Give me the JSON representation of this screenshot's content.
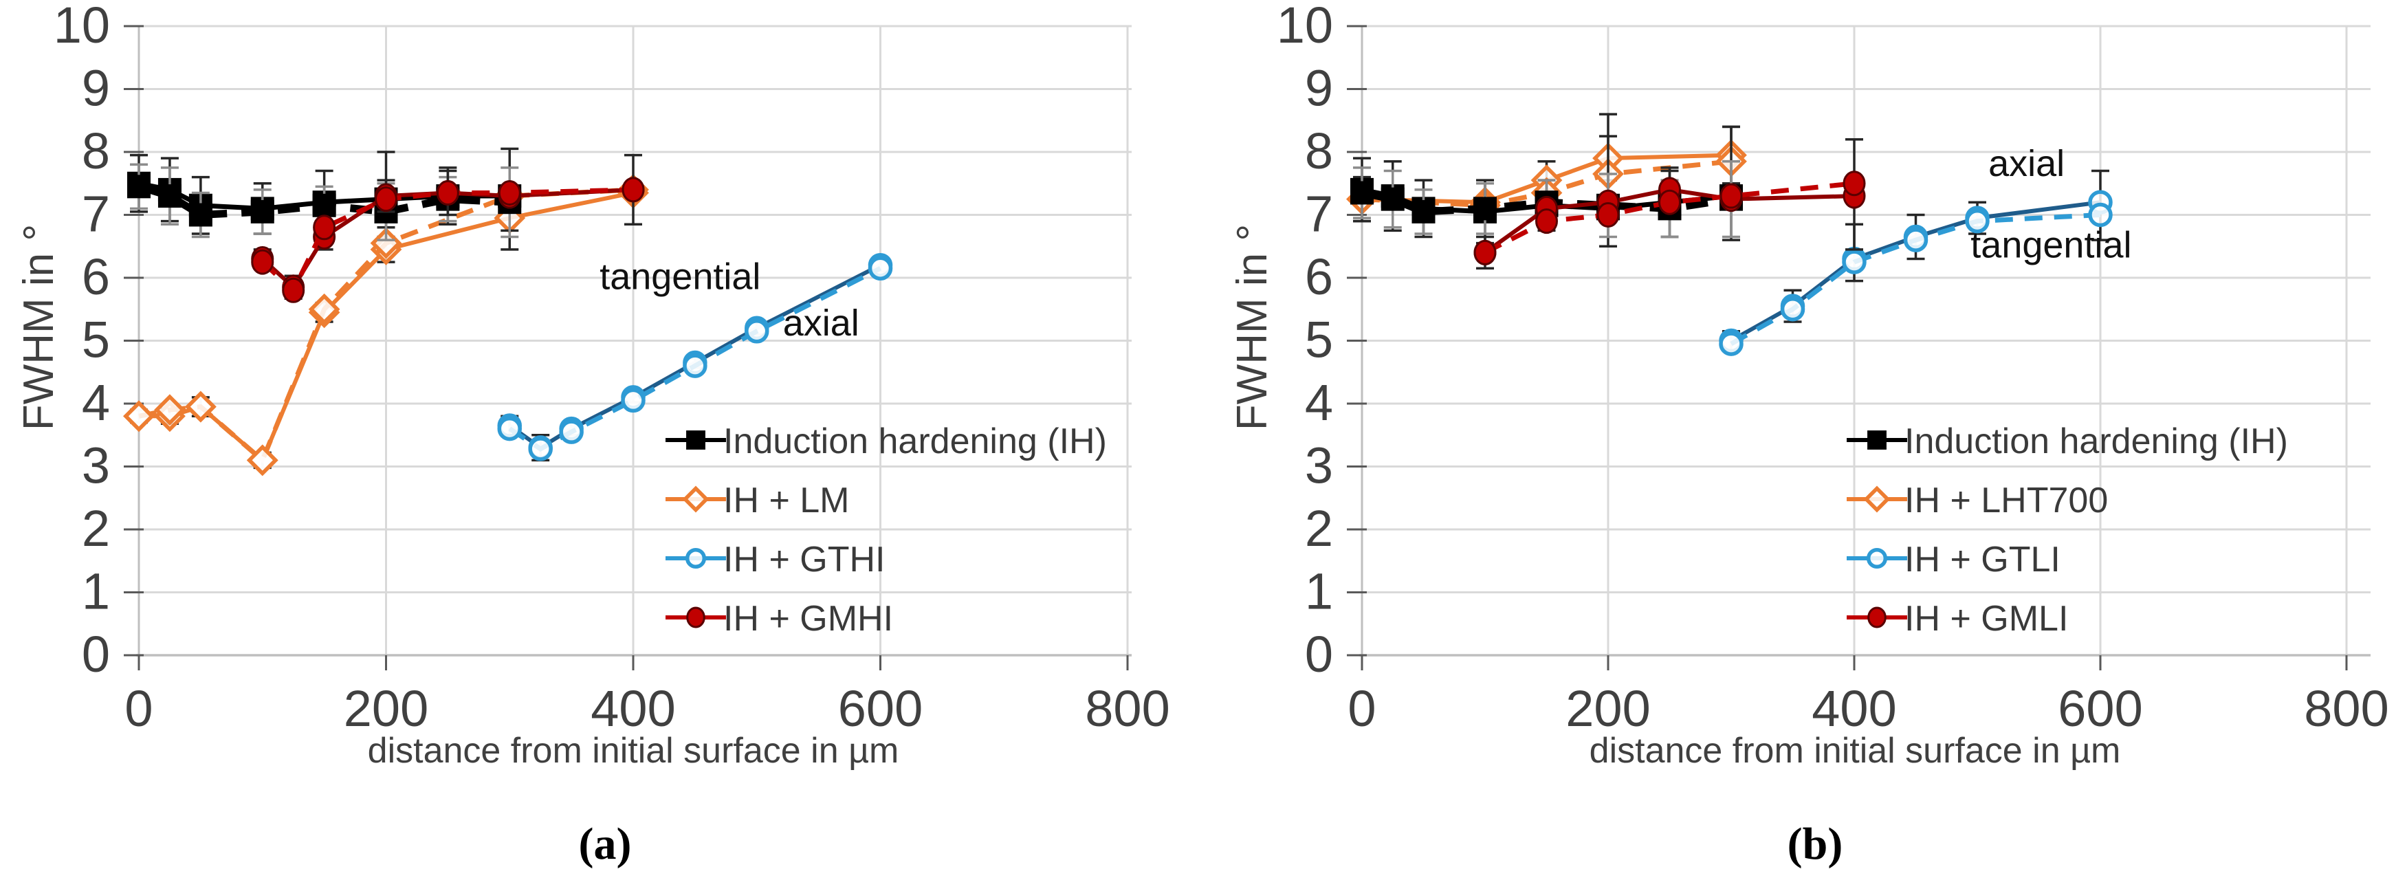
{
  "figure": {
    "background": "#ffffff",
    "grid_color": "#d9d9d9",
    "axis_color": "#bfbfbf",
    "tick_color": "#595959",
    "text_color": "#404040",
    "captions": [
      "(a)",
      "(b)"
    ]
  },
  "chart_data": [
    {
      "type": "line",
      "panel": "a",
      "caption": "(a)",
      "title": "",
      "xlabel": "distance from initial surface in µm",
      "ylabel": "FWHM in °",
      "xlim": [
        0,
        800
      ],
      "ylim": [
        0,
        10
      ],
      "xticks": [
        0,
        200,
        400,
        600,
        800
      ],
      "yticks": [
        0,
        1,
        2,
        3,
        4,
        5,
        6,
        7,
        8,
        9,
        10
      ],
      "grid": true,
      "legend_position": "inside-bottom-right",
      "annotations": [
        {
          "text": "tangential",
          "x": 438,
          "y": 5.82
        },
        {
          "text": "axial",
          "x": 552,
          "y": 5.08
        }
      ],
      "series": [
        {
          "name": "Induction hardening (IH)",
          "marker": "filled-square",
          "color": "#000000",
          "lines": [
            {
              "style": "solid",
              "orientation": "tangential",
              "x": [
                0,
                25,
                50,
                100,
                150,
                200,
                250,
                300
              ],
              "y": [
                7.5,
                7.4,
                7.15,
                7.1,
                7.2,
                7.25,
                7.3,
                7.3
              ],
              "err": [
                0.45,
                0.5,
                0.45,
                0.4,
                0.5,
                [
                  0.45,
                  0.75
                ],
                0.45,
                [
                  0.55,
                  0.75
                ]
              ]
            },
            {
              "style": "dashed",
              "orientation": "axial",
              "x": [
                0,
                25,
                50,
                100,
                150,
                200,
                250,
                300
              ],
              "y": [
                7.45,
                7.3,
                7.0,
                7.05,
                7.15,
                7.05,
                7.25,
                7.2
              ],
              "err": [
                0.35,
                0.45,
                0.35,
                0.35,
                0.3,
                0.45,
                0.35,
                0.55
              ]
            }
          ]
        },
        {
          "name": "IH + LM",
          "marker": "open-diamond",
          "color": "#ED7D31",
          "lines": [
            {
              "style": "solid",
              "orientation": "tangential",
              "x": [
                0,
                25,
                50,
                100,
                150,
                200,
                300,
                400
              ],
              "y": [
                3.8,
                3.8,
                3.95,
                3.1,
                5.45,
                6.45,
                6.95,
                7.35
              ],
              "err": [
                0.1,
                0.12,
                0.15,
                0.12,
                0.15,
                0.2,
                0.5,
                0
              ]
            },
            {
              "style": "dashed",
              "orientation": "axial",
              "x": [
                0,
                25,
                50,
                100,
                150,
                200,
                300,
                400
              ],
              "y": [
                3.8,
                3.9,
                3.95,
                3.1,
                5.5,
                6.55,
                7.3,
                7.4
              ],
              "err": [
                0,
                0,
                0,
                0,
                0,
                0,
                0,
                0
              ]
            }
          ]
        },
        {
          "name": "IH + GTHI",
          "marker": "open-circle",
          "color": "#2E9BD5",
          "solid_color": "#1F5C8B",
          "lines": [
            {
              "style": "solid",
              "orientation": "axial",
              "x": [
                300,
                325,
                350,
                400,
                450,
                500,
                600
              ],
              "y": [
                3.65,
                3.3,
                3.6,
                4.1,
                4.65,
                5.2,
                6.2
              ],
              "err": [
                0.15,
                0.2,
                0.1,
                0.08,
                0.08,
                0.1,
                0.1
              ]
            },
            {
              "style": "dashed",
              "orientation": "tangential",
              "x": [
                300,
                325,
                350,
                400,
                450,
                500,
                600
              ],
              "y": [
                3.6,
                3.28,
                3.55,
                4.05,
                4.6,
                5.15,
                6.15
              ],
              "err": [
                0,
                0,
                0,
                0,
                0,
                0,
                0
              ]
            }
          ]
        },
        {
          "name": "IH + GMHI",
          "marker": "filled-circle",
          "color": "#C00000",
          "solid_color": "#8F0000",
          "lines": [
            {
              "style": "solid",
              "orientation": "tangential",
              "x": [
                100,
                125,
                150,
                200,
                250,
                300,
                400
              ],
              "y": [
                6.3,
                5.85,
                6.65,
                7.3,
                7.35,
                7.3,
                7.4
              ],
              "err": [
                0.15,
                0.18,
                0.2,
                0.25,
                0.35,
                0,
                0.55
              ]
            },
            {
              "style": "dashed",
              "orientation": "axial",
              "x": [
                100,
                125,
                150,
                200,
                250,
                300,
                400
              ],
              "y": [
                6.25,
                5.8,
                6.8,
                7.25,
                7.35,
                7.35,
                7.4
              ],
              "err": [
                0,
                0,
                0,
                0,
                0,
                0,
                0
              ]
            }
          ]
        }
      ]
    },
    {
      "type": "line",
      "panel": "b",
      "caption": "(b)",
      "title": "",
      "xlabel": "distance from initial surface in µm",
      "ylabel": "FWHM in °",
      "xlim": [
        0,
        800
      ],
      "ylim": [
        0,
        10
      ],
      "xticks": [
        0,
        200,
        400,
        600,
        800
      ],
      "yticks": [
        0,
        1,
        2,
        3,
        4,
        5,
        6,
        7,
        8,
        9,
        10
      ],
      "grid": true,
      "legend_position": "inside-bottom-right",
      "annotations": [
        {
          "text": "axial",
          "x": 540,
          "y": 7.62
        },
        {
          "text": "tangential",
          "x": 560,
          "y": 6.32
        }
      ],
      "series": [
        {
          "name": "Induction hardening (IH)",
          "marker": "filled-square",
          "color": "#000000",
          "lines": [
            {
              "style": "solid",
              "orientation": "tangential",
              "x": [
                0,
                25,
                50,
                100,
                150,
                200,
                250,
                300
              ],
              "y": [
                7.4,
                7.3,
                7.1,
                7.05,
                7.15,
                7.1,
                7.2,
                7.3
              ],
              "err": [
                0.5,
                0.55,
                0.45,
                0.5,
                0.4,
                [
                  0.6,
                  1.5
                ],
                0.55,
                [
                  0.7,
                  1.1
                ]
              ]
            },
            {
              "style": "dashed",
              "orientation": "axial",
              "x": [
                0,
                25,
                50,
                100,
                150,
                200,
                250,
                300
              ],
              "y": [
                7.35,
                7.25,
                7.05,
                7.1,
                7.2,
                7.15,
                7.1,
                7.25
              ],
              "err": [
                0.4,
                0.45,
                0.35,
                0.4,
                0.35,
                0.5,
                0.45,
                0.6
              ]
            }
          ]
        },
        {
          "name": "IH + LHT700",
          "marker": "open-diamond",
          "color": "#ED7D31",
          "lines": [
            {
              "style": "solid",
              "orientation": "tangential",
              "x": [
                0,
                100,
                150,
                200,
                300
              ],
              "y": [
                7.25,
                7.2,
                7.55,
                7.9,
                7.95
              ],
              "err": [
                0.35,
                0.3,
                0.3,
                0.35,
                0.45
              ]
            },
            {
              "style": "dashed",
              "orientation": "axial",
              "x": [
                0,
                100,
                150,
                200,
                300
              ],
              "y": [
                7.25,
                7.15,
                7.35,
                7.65,
                7.85
              ],
              "err": [
                0,
                0,
                0,
                0,
                0
              ]
            }
          ]
        },
        {
          "name": "IH + GTLI",
          "marker": "open-circle",
          "color": "#2E9BD5",
          "solid_color": "#1F5C8B",
          "lines": [
            {
              "style": "solid",
              "orientation": "axial",
              "x": [
                300,
                350,
                400,
                450,
                500,
                600
              ],
              "y": [
                5.0,
                5.55,
                6.3,
                6.65,
                6.95,
                7.2
              ],
              "err": [
                0.15,
                0.25,
                [
                  0.35,
                  0.55
                ],
                0.35,
                0.25,
                [
                  0.6,
                  0.5
                ]
              ]
            },
            {
              "style": "dashed",
              "orientation": "tangential",
              "x": [
                300,
                350,
                400,
                450,
                500,
                600
              ],
              "y": [
                4.95,
                5.5,
                6.25,
                6.6,
                6.9,
                7.0
              ],
              "err": [
                0,
                0,
                0,
                0,
                0,
                0
              ]
            }
          ]
        },
        {
          "name": "IH + GMLI",
          "marker": "filled-circle",
          "color": "#C00000",
          "solid_color": "#8F0000",
          "lines": [
            {
              "style": "solid",
              "orientation": "tangential",
              "x": [
                100,
                150,
                200,
                250,
                300,
                400
              ],
              "y": [
                6.4,
                7.1,
                7.2,
                7.4,
                7.25,
                7.3
              ],
              "err": [
                0.25,
                0,
                0,
                0.3,
                0,
                [
                  0.85,
                  0.9
                ]
              ]
            },
            {
              "style": "dashed",
              "orientation": "axial",
              "x": [
                100,
                150,
                200,
                250,
                300,
                400
              ],
              "y": [
                6.4,
                6.9,
                7.0,
                7.2,
                7.3,
                7.5
              ],
              "err": [
                0,
                0,
                0,
                0,
                0,
                0
              ]
            }
          ]
        }
      ]
    }
  ]
}
